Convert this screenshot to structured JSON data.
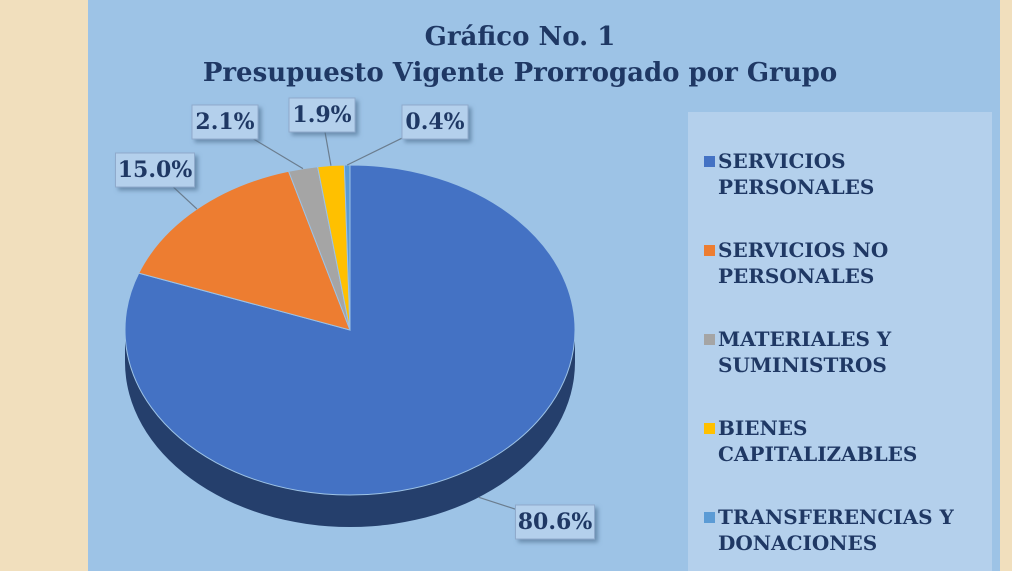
{
  "chart_data": {
    "type": "pie",
    "title": "Gráfico No. 1",
    "subtitle": "Presupuesto  Vigente  Prorrogado por Grupo",
    "categories": [
      "SERVICIOS PERSONALES",
      "SERVICIOS NO PERSONALES",
      "MATERIALES Y SUMINISTROS",
      "BIENES CAPITALIZABLES",
      "TRANSFERENCIAS Y DONACIONES"
    ],
    "values": [
      80.6,
      15.0,
      2.1,
      1.9,
      0.4
    ],
    "value_labels": [
      "80.6%",
      "15.0%",
      "2.1%",
      "1.9%",
      "0.4%"
    ],
    "colors": [
      "#4472c4",
      "#ed7d31",
      "#a5a5a5",
      "#ffc000",
      "#5b9bd5"
    ],
    "legend": "right"
  }
}
